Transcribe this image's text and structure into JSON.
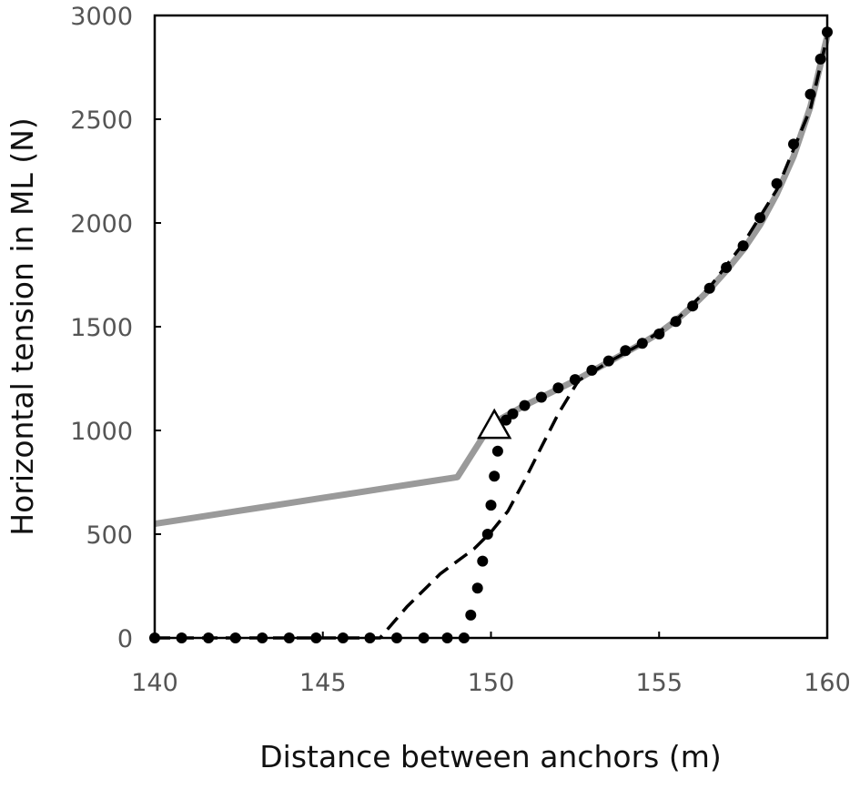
{
  "chart_data": {
    "type": "line",
    "title": "",
    "xlabel": "Distance between anchors (m)",
    "ylabel": "Horizontal tension in ML (N)",
    "xlim": [
      140,
      160
    ],
    "ylim": [
      0,
      3000
    ],
    "xticks": [
      140,
      145,
      150,
      155,
      160
    ],
    "yticks": [
      0,
      500,
      1000,
      1500,
      2000,
      2500,
      3000
    ],
    "grid": false,
    "legend": "none",
    "series": [
      {
        "style": "solid-gray",
        "color": "#9a9a9a",
        "x": [
          140,
          141,
          142,
          143,
          144,
          145,
          146,
          147,
          148,
          149,
          150,
          150.5,
          151,
          151.5,
          152,
          152.5,
          153,
          153.5,
          154,
          154.5,
          155,
          155.5,
          156,
          156.5,
          157,
          157.5,
          158,
          158.5,
          159,
          159.5,
          160
        ],
        "y": [
          550,
          575,
          600,
          625,
          650,
          675,
          700,
          725,
          750,
          775,
          1030,
          1075,
          1120,
          1160,
          1200,
          1240,
          1285,
          1330,
          1375,
          1420,
          1470,
          1530,
          1600,
          1680,
          1770,
          1870,
          1990,
          2140,
          2320,
          2560,
          2900
        ]
      },
      {
        "style": "dashed-black",
        "color": "#000000",
        "x": [
          140,
          141,
          142,
          143,
          144,
          145,
          146,
          146.7,
          147.5,
          148.5,
          149.5,
          150,
          150.5,
          151,
          151.5,
          152,
          152.6,
          153.5,
          154.5,
          155.5,
          156.5,
          157.5,
          158.5,
          159.5,
          160
        ],
        "y": [
          0,
          0,
          0,
          0,
          0,
          0,
          0,
          0,
          150,
          310,
          430,
          510,
          610,
          760,
          920,
          1080,
          1240,
          1330,
          1420,
          1530,
          1690,
          1900,
          2160,
          2550,
          2900
        ]
      },
      {
        "style": "dotted-black",
        "color": "#000000",
        "x": [
          140,
          140.8,
          141.6,
          142.4,
          143.2,
          144,
          144.8,
          145.6,
          146.4,
          147.2,
          148,
          148.7,
          149.2,
          149.4,
          149.6,
          149.75,
          149.9,
          150,
          150.1,
          150.2,
          150.3,
          150.45,
          150.65,
          151,
          151.5,
          152,
          152.5,
          153,
          153.5,
          154,
          154.5,
          155,
          155.5,
          156,
          156.5,
          157,
          157.5,
          158,
          158.5,
          159,
          159.5,
          159.8,
          160
        ],
        "y": [
          0,
          0,
          0,
          0,
          0,
          0,
          0,
          0,
          0,
          0,
          0,
          0,
          0,
          110,
          240,
          370,
          500,
          640,
          780,
          900,
          990,
          1050,
          1080,
          1120,
          1160,
          1205,
          1245,
          1290,
          1335,
          1385,
          1420,
          1465,
          1525,
          1600,
          1685,
          1785,
          1890,
          2025,
          2190,
          2380,
          2620,
          2790,
          2920
        ]
      }
    ],
    "annotations": [
      {
        "marker": "open-triangle",
        "x": 150.1,
        "y": 1030
      }
    ]
  }
}
